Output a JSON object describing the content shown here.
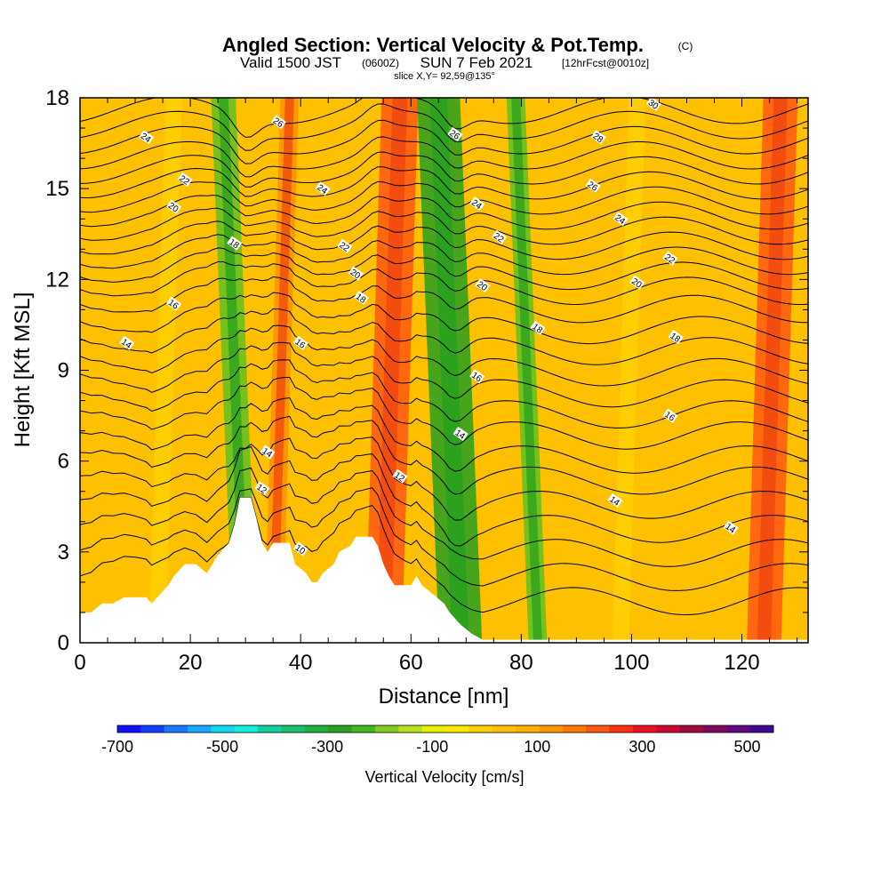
{
  "header": {
    "title": "Angled Section: Vertical Velocity & Pot.Temp.",
    "title_unit": "(C)",
    "valid_prefix": "Valid 1500 JST",
    "valid_utc": "(0600Z)",
    "valid_date": "SUN 7 Feb 2021",
    "forecast_tag": "[12hrFcst@0010z]",
    "slice_info": "slice X,Y= 92,59@135°"
  },
  "colors": {
    "background_field": "#ffc000",
    "strong_up": "#ff6010",
    "weak_up": "#ffdc00",
    "down": "#3cb028",
    "terrain": "#ffffff",
    "contour": "#000000"
  },
  "chart_data": {
    "type": "heatmap",
    "xlabel": "Distance [nm]",
    "ylabel": "Height [Kft MSL]",
    "xlim": [
      0,
      132
    ],
    "ylim": [
      0,
      18
    ],
    "x_ticks": [
      "0",
      "20",
      "40",
      "60",
      "80",
      "100",
      "120"
    ],
    "y_ticks": [
      "0",
      "3",
      "6",
      "9",
      "12",
      "15",
      "18"
    ],
    "field": "Vertical Velocity [cm/s]",
    "velocity_bands": [
      {
        "x": 14,
        "v": 90
      },
      {
        "x": 30,
        "v": -200
      },
      {
        "x": 35,
        "v": 150
      },
      {
        "x": 55,
        "v": 300
      },
      {
        "x": 69,
        "v": -350
      },
      {
        "x": 83,
        "v": -150
      },
      {
        "x": 98,
        "v": 60
      },
      {
        "x": 124,
        "v": 280
      }
    ],
    "terrain_kft": [
      [
        0,
        1.0
      ],
      [
        2,
        1.0
      ],
      [
        4,
        1.3
      ],
      [
        6,
        1.3
      ],
      [
        8,
        1.5
      ],
      [
        10,
        1.5
      ],
      [
        12,
        1.5
      ],
      [
        13,
        1.3
      ],
      [
        14,
        1.5
      ],
      [
        15,
        1.7
      ],
      [
        16,
        1.9
      ],
      [
        17,
        2.2
      ],
      [
        19,
        2.6
      ],
      [
        21,
        2.6
      ],
      [
        23,
        2.3
      ],
      [
        24,
        2.6
      ],
      [
        25,
        2.9
      ],
      [
        27,
        3.3
      ],
      [
        28,
        3.9
      ],
      [
        29,
        4.8
      ],
      [
        31,
        4.8
      ],
      [
        32,
        4.1
      ],
      [
        33,
        3.3
      ],
      [
        34,
        3.0
      ],
      [
        35,
        3.3
      ],
      [
        38,
        3.3
      ],
      [
        39,
        2.6
      ],
      [
        41,
        2.3
      ],
      [
        42,
        2.0
      ],
      [
        43,
        2.0
      ],
      [
        44,
        2.3
      ],
      [
        46,
        2.6
      ],
      [
        47,
        3.0
      ],
      [
        49,
        3.2
      ],
      [
        50,
        3.5
      ],
      [
        53,
        3.5
      ],
      [
        54,
        3.2
      ],
      [
        55,
        2.6
      ],
      [
        56,
        2.2
      ],
      [
        57,
        1.9
      ],
      [
        60,
        1.9
      ],
      [
        61,
        2.2
      ],
      [
        62,
        1.9
      ],
      [
        64,
        1.6
      ],
      [
        66,
        1.3
      ],
      [
        67,
        1.0
      ],
      [
        69,
        0.6
      ],
      [
        71,
        0.3
      ],
      [
        73,
        0.1
      ],
      [
        132,
        0.1
      ]
    ],
    "pot_temp_contours": [
      {
        "value": 10,
        "z0": 1.3
      },
      {
        "value": 11,
        "z0": 2.1
      },
      {
        "value": 12,
        "z0": 2.9
      },
      {
        "value": 12,
        "z0": 3.7
      },
      {
        "value": 13,
        "z0": 4.5
      },
      {
        "value": 13,
        "z0": 5.3
      },
      {
        "value": 14,
        "z0": 6.0
      },
      {
        "value": 14,
        "z0": 6.8
      },
      {
        "value": 15,
        "z0": 7.5
      },
      {
        "value": 15,
        "z0": 8.2
      },
      {
        "value": 16,
        "z0": 8.9
      },
      {
        "value": 16,
        "z0": 9.6
      },
      {
        "value": 17,
        "z0": 10.3
      },
      {
        "value": 18,
        "z0": 11.0
      },
      {
        "value": 18,
        "z0": 11.6
      },
      {
        "value": 19,
        "z0": 12.1
      },
      {
        "value": 20,
        "z0": 12.6
      },
      {
        "value": 21,
        "z0": 13.1
      },
      {
        "value": 22,
        "z0": 13.6
      },
      {
        "value": 23,
        "z0": 14.1
      },
      {
        "value": 24,
        "z0": 14.6
      },
      {
        "value": 25,
        "z0": 15.1
      },
      {
        "value": 26,
        "z0": 15.6
      },
      {
        "value": 27,
        "z0": 16.1
      },
      {
        "value": 28,
        "z0": 16.6
      },
      {
        "value": 29,
        "z0": 17.1
      },
      {
        "value": 30,
        "z0": 17.6
      }
    ],
    "contour_labels": [
      {
        "text": "24",
        "x": 12,
        "z": 16.7
      },
      {
        "text": "22",
        "x": 19,
        "z": 15.3
      },
      {
        "text": "20",
        "x": 17,
        "z": 14.4
      },
      {
        "text": "18",
        "x": 28,
        "z": 13.2
      },
      {
        "text": "16",
        "x": 17,
        "z": 11.2
      },
      {
        "text": "14",
        "x": 8.5,
        "z": 9.9
      },
      {
        "text": "26",
        "x": 36,
        "z": 17.2
      },
      {
        "text": "24",
        "x": 44,
        "z": 15.0
      },
      {
        "text": "22",
        "x": 48,
        "z": 13.1
      },
      {
        "text": "20",
        "x": 50,
        "z": 12.2
      },
      {
        "text": "18",
        "x": 51,
        "z": 11.4
      },
      {
        "text": "16",
        "x": 40,
        "z": 9.9
      },
      {
        "text": "14",
        "x": 34,
        "z": 6.3
      },
      {
        "text": "12",
        "x": 33,
        "z": 5.1
      },
      {
        "text": "10",
        "x": 40,
        "z": 3.1
      },
      {
        "text": "12",
        "x": 58,
        "z": 5.5
      },
      {
        "text": "26",
        "x": 68,
        "z": 16.8
      },
      {
        "text": "24",
        "x": 72,
        "z": 14.5
      },
      {
        "text": "22",
        "x": 76,
        "z": 13.4
      },
      {
        "text": "20",
        "x": 73,
        "z": 11.8
      },
      {
        "text": "18",
        "x": 83,
        "z": 10.4
      },
      {
        "text": "16",
        "x": 72,
        "z": 8.8
      },
      {
        "text": "14",
        "x": 69,
        "z": 6.9
      },
      {
        "text": "28",
        "x": 94,
        "z": 16.7
      },
      {
        "text": "26",
        "x": 93,
        "z": 15.1
      },
      {
        "text": "24",
        "x": 98,
        "z": 14.0
      },
      {
        "text": "22",
        "x": 107,
        "z": 12.7
      },
      {
        "text": "20",
        "x": 101,
        "z": 11.9
      },
      {
        "text": "18",
        "x": 108,
        "z": 10.1
      },
      {
        "text": "16",
        "x": 107,
        "z": 7.5
      },
      {
        "text": "14",
        "x": 97,
        "z": 4.7
      },
      {
        "text": "14",
        "x": 118,
        "z": 3.8
      },
      {
        "text": "30",
        "x": 104,
        "z": 17.8
      }
    ]
  },
  "colorbar": {
    "label": "Vertical Velocity [cm/s]",
    "min": -700,
    "max": 550,
    "tick_labels": [
      "-700",
      "-500",
      "-300",
      "-100",
      "100",
      "300",
      "500"
    ],
    "colors": [
      "#1010ff",
      "#1040ff",
      "#1878ff",
      "#18a8ff",
      "#10d8f0",
      "#10f0d8",
      "#10d0a0",
      "#18c070",
      "#20b040",
      "#28a020",
      "#40b820",
      "#80cc20",
      "#b8e020",
      "#e8f000",
      "#ffe800",
      "#ffd000",
      "#ffc000",
      "#ffb000",
      "#ff9800",
      "#ff7800",
      "#ff5810",
      "#ff3010",
      "#ee1020",
      "#cc0830",
      "#a00840",
      "#800860",
      "#600880",
      "#400890"
    ]
  }
}
